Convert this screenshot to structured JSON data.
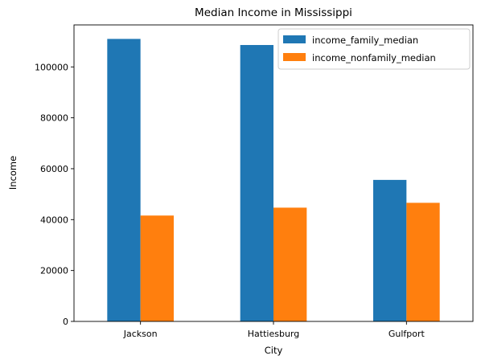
{
  "chart_data": {
    "type": "bar",
    "title": "Median Income in Mississippi",
    "xlabel": "City",
    "ylabel": "Income",
    "categories": [
      "Jackson",
      "Hattiesburg",
      "Gulfport"
    ],
    "series": [
      {
        "name": "income_family_median",
        "color": "#1f77b4",
        "values": [
          111000,
          108600,
          55600
        ]
      },
      {
        "name": "income_nonfamily_median",
        "color": "#ff7f0e",
        "values": [
          41600,
          44700,
          46600
        ]
      }
    ],
    "ylim": [
      0,
      116500
    ],
    "yticks": [
      0,
      20000,
      40000,
      60000,
      80000,
      100000
    ],
    "grid": false,
    "legend_position": "top-right"
  }
}
